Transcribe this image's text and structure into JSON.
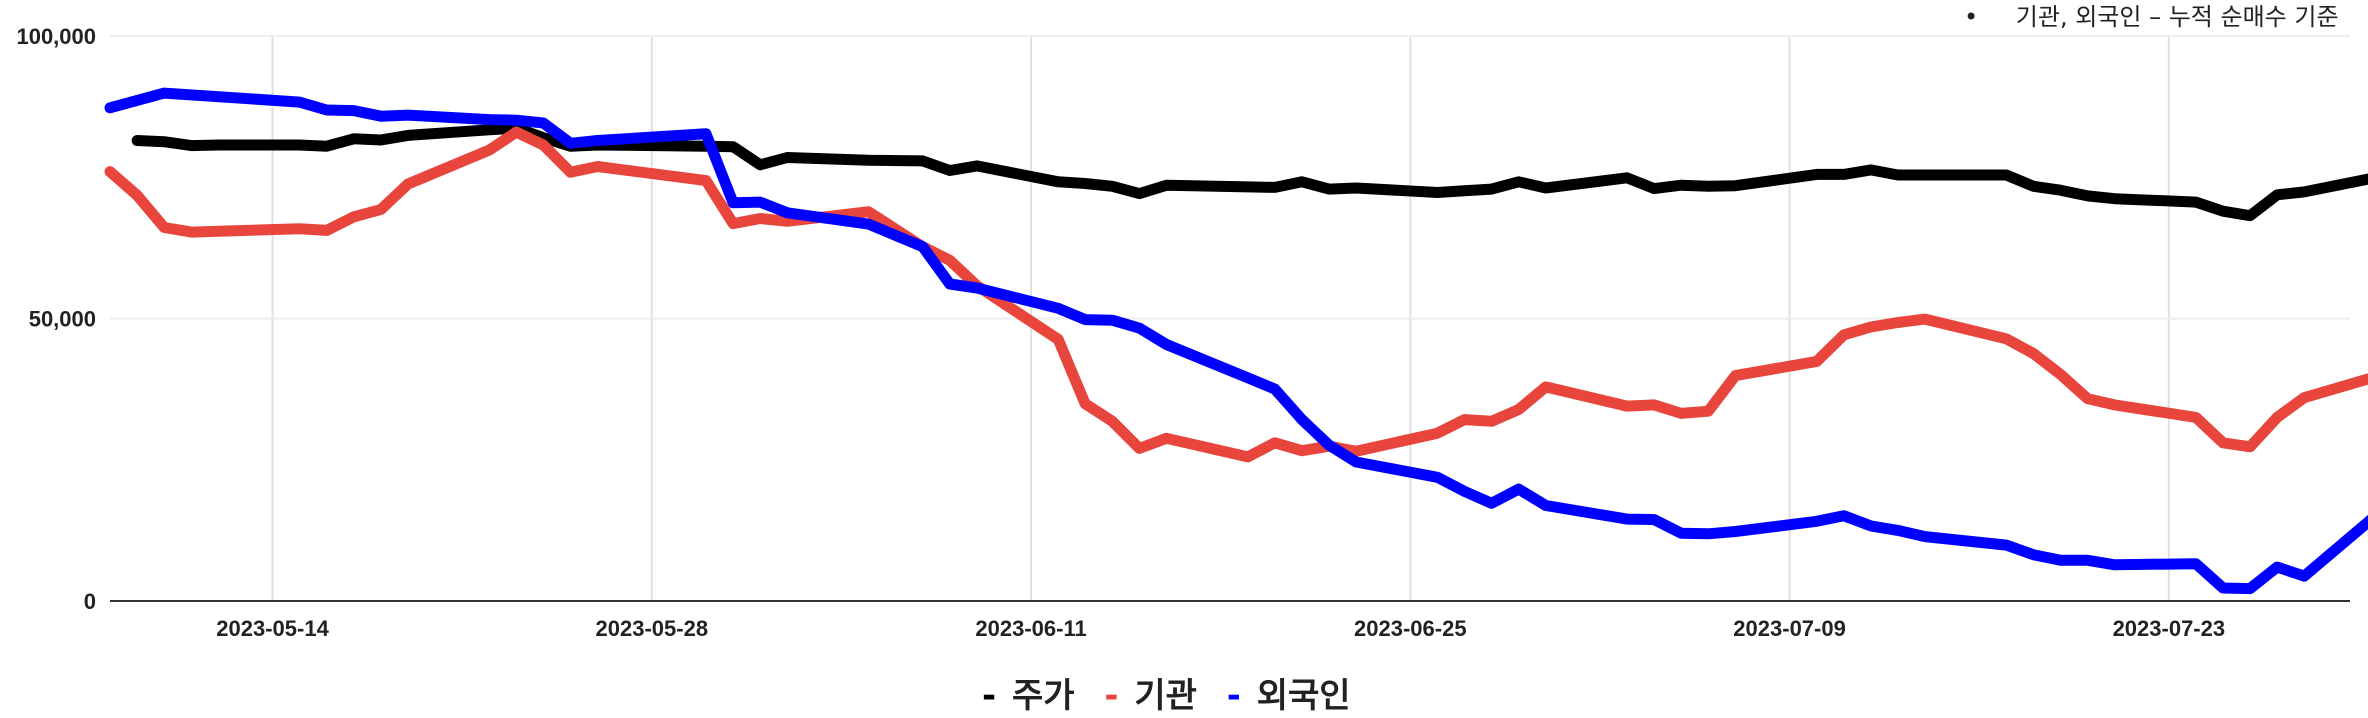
{
  "header_note": {
    "bullet": "•",
    "text": "기관, 외국인 – 누적 순매수 기준"
  },
  "legend": {
    "items": [
      {
        "marker": "-",
        "label": "주가",
        "color": "#000000"
      },
      {
        "marker": "-",
        "label": "기관",
        "color": "#e8453c"
      },
      {
        "marker": "-",
        "label": "외국인",
        "color": "#0000ff"
      }
    ]
  },
  "chart_data": {
    "type": "line",
    "title": "",
    "xlabel": "",
    "ylabel": "",
    "ylim": [
      0,
      100000
    ],
    "yticks": [
      0,
      50000,
      100000
    ],
    "ytick_labels": [
      "0",
      "50,000",
      "100,000"
    ],
    "xticks": [
      "2023-05-14",
      "2023-05-28",
      "2023-06-11",
      "2023-06-25",
      "2023-07-09",
      "2023-07-23"
    ],
    "grid": true,
    "legend_position": "bottom",
    "series": [
      {
        "name": "주가",
        "color": "#000000",
        "x": [
          "2023-05-09",
          "2023-05-10",
          "2023-05-11",
          "2023-05-12",
          "2023-05-15",
          "2023-05-16",
          "2023-05-17",
          "2023-05-18",
          "2023-05-19",
          "2023-05-22",
          "2023-05-23",
          "2023-05-24",
          "2023-05-25",
          "2023-05-26",
          "2023-05-30",
          "2023-05-31",
          "2023-06-01",
          "2023-06-02",
          "2023-06-05",
          "2023-06-07",
          "2023-06-08",
          "2023-06-09",
          "2023-06-12",
          "2023-06-13",
          "2023-06-14",
          "2023-06-15",
          "2023-06-16",
          "2023-06-19",
          "2023-06-20",
          "2023-06-21",
          "2023-06-22",
          "2023-06-23",
          "2023-06-26",
          "2023-06-27",
          "2023-06-28",
          "2023-06-29",
          "2023-06-30",
          "2023-07-03",
          "2023-07-04",
          "2023-07-05",
          "2023-07-06",
          "2023-07-07",
          "2023-07-10",
          "2023-07-11",
          "2023-07-12",
          "2023-07-13",
          "2023-07-14",
          "2023-07-17",
          "2023-07-18",
          "2023-07-19",
          "2023-07-20",
          "2023-07-21",
          "2023-07-24",
          "2023-07-25",
          "2023-07-26",
          "2023-07-27",
          "2023-07-28",
          "2023-07-31"
        ],
        "values": [
          81500,
          81300,
          80600,
          80700,
          80700,
          80500,
          81800,
          81600,
          82400,
          83400,
          83700,
          82000,
          80500,
          80700,
          80500,
          80400,
          77200,
          78500,
          78000,
          77900,
          76200,
          77000,
          74200,
          73900,
          73400,
          72100,
          73600,
          73300,
          73200,
          74200,
          72900,
          73100,
          72300,
          72600,
          72900,
          74200,
          73100,
          74900,
          73000,
          73600,
          73400,
          73500,
          75500,
          75500,
          76300,
          75400,
          75400,
          75400,
          73400,
          72700,
          71700,
          71200,
          70600,
          69000,
          68200,
          71900,
          72400,
          75300
        ]
      },
      {
        "name": "기관",
        "color": "#e8453c",
        "x": [
          "2023-05-08",
          "2023-05-09",
          "2023-05-10",
          "2023-05-11",
          "2023-05-15",
          "2023-05-16",
          "2023-05-17",
          "2023-05-18",
          "2023-05-19",
          "2023-05-22",
          "2023-05-23",
          "2023-05-24",
          "2023-05-25",
          "2023-05-26",
          "2023-05-30",
          "2023-05-31",
          "2023-06-01",
          "2023-06-02",
          "2023-06-05",
          "2023-06-07",
          "2023-06-08",
          "2023-06-09",
          "2023-06-12",
          "2023-06-13",
          "2023-06-14",
          "2023-06-15",
          "2023-06-16",
          "2023-06-19",
          "2023-06-20",
          "2023-06-21",
          "2023-06-22",
          "2023-06-23",
          "2023-06-26",
          "2023-06-27",
          "2023-06-28",
          "2023-06-29",
          "2023-06-30",
          "2023-07-03",
          "2023-07-04",
          "2023-07-05",
          "2023-07-06",
          "2023-07-07",
          "2023-07-10",
          "2023-07-11",
          "2023-07-12",
          "2023-07-13",
          "2023-07-14",
          "2023-07-17",
          "2023-07-18",
          "2023-07-19",
          "2023-07-20",
          "2023-07-21",
          "2023-07-24",
          "2023-07-25",
          "2023-07-26",
          "2023-07-27",
          "2023-07-28",
          "2023-07-31"
        ],
        "values": [
          76000,
          71800,
          66100,
          65300,
          65900,
          65600,
          68000,
          69300,
          73800,
          79800,
          83000,
          80700,
          75900,
          76900,
          74400,
          66800,
          67700,
          67200,
          68900,
          62700,
          60300,
          55800,
          46300,
          34900,
          31800,
          27000,
          28800,
          25500,
          28000,
          26600,
          27400,
          26500,
          29700,
          32100,
          31800,
          33900,
          37900,
          34500,
          34700,
          33200,
          33600,
          39900,
          42400,
          47100,
          48500,
          49300,
          49900,
          46400,
          43800,
          40100,
          35800,
          34700,
          32500,
          28000,
          27300,
          32500,
          36000,
          40200
        ]
      },
      {
        "name": "외국인",
        "color": "#0000ff",
        "x": [
          "2023-05-08",
          "2023-05-10",
          "2023-05-15",
          "2023-05-16",
          "2023-05-17",
          "2023-05-18",
          "2023-05-19",
          "2023-05-22",
          "2023-05-23",
          "2023-05-24",
          "2023-05-25",
          "2023-05-26",
          "2023-05-30",
          "2023-05-31",
          "2023-06-01",
          "2023-06-02",
          "2023-06-05",
          "2023-06-07",
          "2023-06-08",
          "2023-06-09",
          "2023-06-12",
          "2023-06-13",
          "2023-06-14",
          "2023-06-15",
          "2023-06-16",
          "2023-06-19",
          "2023-06-20",
          "2023-06-21",
          "2023-06-22",
          "2023-06-23",
          "2023-06-26",
          "2023-06-27",
          "2023-06-28",
          "2023-06-29",
          "2023-06-30",
          "2023-07-03",
          "2023-07-04",
          "2023-07-05",
          "2023-07-06",
          "2023-07-07",
          "2023-07-10",
          "2023-07-11",
          "2023-07-12",
          "2023-07-13",
          "2023-07-14",
          "2023-07-17",
          "2023-07-18",
          "2023-07-19",
          "2023-07-20",
          "2023-07-21",
          "2023-07-24",
          "2023-07-25",
          "2023-07-26",
          "2023-07-27",
          "2023-07-28",
          "2023-07-31"
        ],
        "values": [
          87300,
          89900,
          88300,
          86900,
          86800,
          85800,
          86000,
          85200,
          85100,
          84600,
          81000,
          81500,
          82700,
          70500,
          70600,
          68700,
          66700,
          62700,
          56100,
          55400,
          51800,
          49800,
          49700,
          48300,
          45400,
          39500,
          37500,
          32100,
          27600,
          24600,
          21900,
          19400,
          17300,
          19800,
          16900,
          14500,
          14400,
          12000,
          11900,
          12300,
          14100,
          15100,
          13300,
          12500,
          11400,
          9900,
          8200,
          7200,
          7200,
          6400,
          6600,
          2300,
          2200,
          6000,
          4400,
          16600
        ]
      }
    ]
  }
}
